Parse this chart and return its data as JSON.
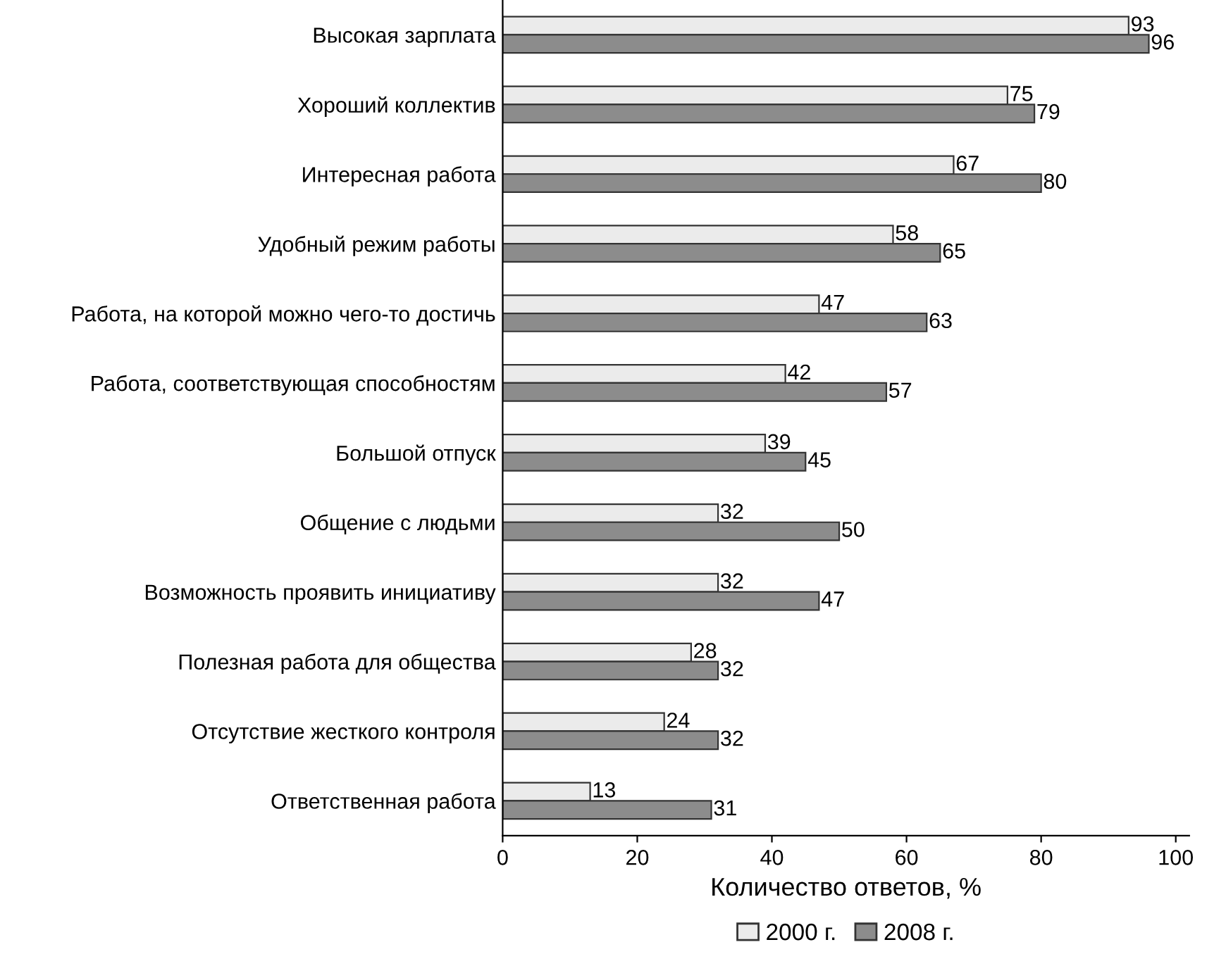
{
  "chart_data": {
    "type": "bar",
    "orientation": "horizontal",
    "xlabel": "Количество ответов, %",
    "categories": [
      "Высокая зарплата",
      "Хороший коллектив",
      "Интересная работа",
      "Удобный режим работы",
      "Работа, на которой можно чего-то достичь",
      "Работа, соответствующая способностям",
      "Большой отпуск",
      "Общение с людьми",
      "Возможность проявить инициативу",
      "Полезная работа для общества",
      "Отсутствие жесткого контроля",
      "Ответственная работа"
    ],
    "series": [
      {
        "name": "2000 г.",
        "color": "#ebebeb",
        "values": [
          93,
          75,
          67,
          58,
          47,
          42,
          39,
          32,
          32,
          28,
          24,
          13
        ]
      },
      {
        "name": "2008 г.",
        "color": "#8c8c8c",
        "values": [
          96,
          79,
          80,
          65,
          63,
          57,
          45,
          50,
          47,
          32,
          32,
          31
        ]
      }
    ],
    "xlim": [
      0,
      102
    ],
    "xticks": [
      0,
      20,
      40,
      60,
      80,
      100
    ],
    "data_labels": true,
    "legend": "bottom",
    "grid": false
  }
}
